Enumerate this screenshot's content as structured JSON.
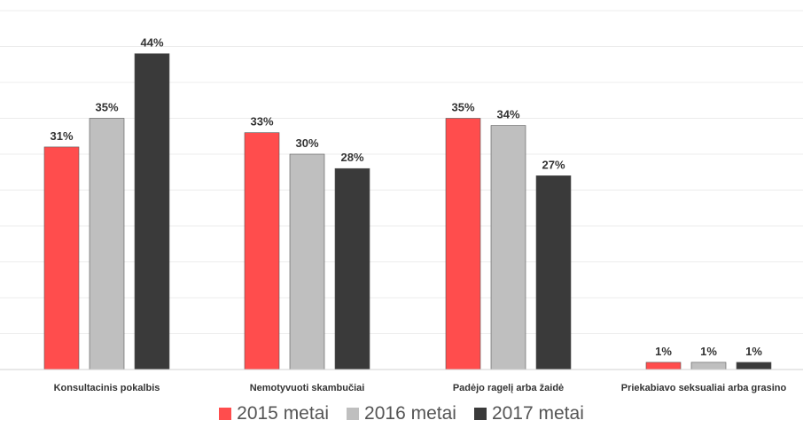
{
  "chart_data": {
    "type": "bar",
    "categories": [
      "Konsultacinis pokalbis",
      "Nemotyvuoti skambučiai",
      "Padėjo ragelį arba žaidė",
      "Priekabiavo seksualiai arba grasino"
    ],
    "series": [
      {
        "name": "2015 metai",
        "values": [
          31,
          33,
          35,
          1
        ],
        "labels": [
          "31%",
          "33%",
          "35%",
          "1%"
        ],
        "color": "#ff4d4d"
      },
      {
        "name": "2016 metai",
        "values": [
          35,
          30,
          34,
          1
        ],
        "labels": [
          "35%",
          "30%",
          "34%",
          "1%"
        ],
        "color": "#bfbfbf"
      },
      {
        "name": "2017 metai",
        "values": [
          44,
          28,
          27,
          1
        ],
        "labels": [
          "44%",
          "28%",
          "27%",
          "1%"
        ],
        "color": "#3a3a3a"
      }
    ],
    "ylim": [
      0,
      50
    ],
    "grid": true,
    "legend": "bottom",
    "title": "",
    "xlabel": "",
    "ylabel": ""
  }
}
